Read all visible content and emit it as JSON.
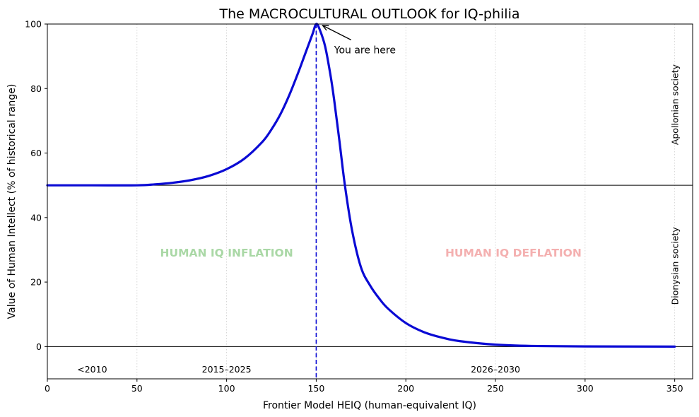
{
  "chart_data": {
    "type": "line",
    "title": "The MACROCULTURAL OUTLOOK for IQ-philia",
    "xlabel": "Frontier Model HEIQ (human-equivalent IQ)",
    "ylabel": "Value of Human Intellect (% of historical range)",
    "xlim": [
      0,
      360
    ],
    "ylim": [
      -10,
      100
    ],
    "xticks": [
      0,
      50,
      100,
      150,
      200,
      250,
      300,
      350
    ],
    "yticks": [
      0,
      20,
      40,
      60,
      80,
      100
    ],
    "grid": "vertical dotted",
    "series": [
      {
        "name": "Value of Human Intellect",
        "color": "#0a0ad4",
        "x": [
          0,
          25,
          50,
          60,
          70,
          80,
          90,
          100,
          110,
          120,
          125,
          130,
          135,
          140,
          143,
          146,
          148,
          150,
          152,
          155,
          158,
          160,
          163,
          166,
          170,
          175,
          180,
          185,
          190,
          200,
          210,
          220,
          230,
          250,
          270,
          300,
          350
        ],
        "y": [
          50,
          50,
          50,
          50.3,
          50.8,
          51.6,
          52.9,
          55,
          58.3,
          63.5,
          67.3,
          72,
          78,
          85,
          89.5,
          94,
          97,
          100,
          98.2,
          93,
          84,
          76.5,
          63.5,
          50,
          36,
          24.5,
          19,
          15,
          11.8,
          7.3,
          4.5,
          2.8,
          1.7,
          0.6,
          0.2,
          0.05,
          0
        ]
      }
    ],
    "reference_lines": {
      "horizontal": [
        50,
        0
      ],
      "vertical": {
        "x": 150,
        "color": "#0a0ad4",
        "style": "dashed"
      }
    },
    "annotations": {
      "you_are_here": {
        "text": "You are here",
        "point_x": 150,
        "point_y": 100,
        "text_x": 160,
        "text_y": 92
      },
      "regions": [
        {
          "text": "HUMAN IQ INFLATION",
          "x": 100,
          "y": 29,
          "color": "#aad8a6"
        },
        {
          "text": "HUMAN IQ DEFLATION",
          "x": 260,
          "y": 29,
          "color": "#f4b0b0"
        }
      ],
      "eras": [
        {
          "text": "<2010",
          "x": 25,
          "y": -7
        },
        {
          "text": "2015–2025",
          "x": 100,
          "y": -7
        },
        {
          "text": "2026–2030",
          "x": 250,
          "y": -7
        }
      ],
      "side_labels": [
        {
          "text": "Apollonian society",
          "y": 75
        },
        {
          "text": "Dionysian society",
          "y": 25
        }
      ]
    }
  }
}
